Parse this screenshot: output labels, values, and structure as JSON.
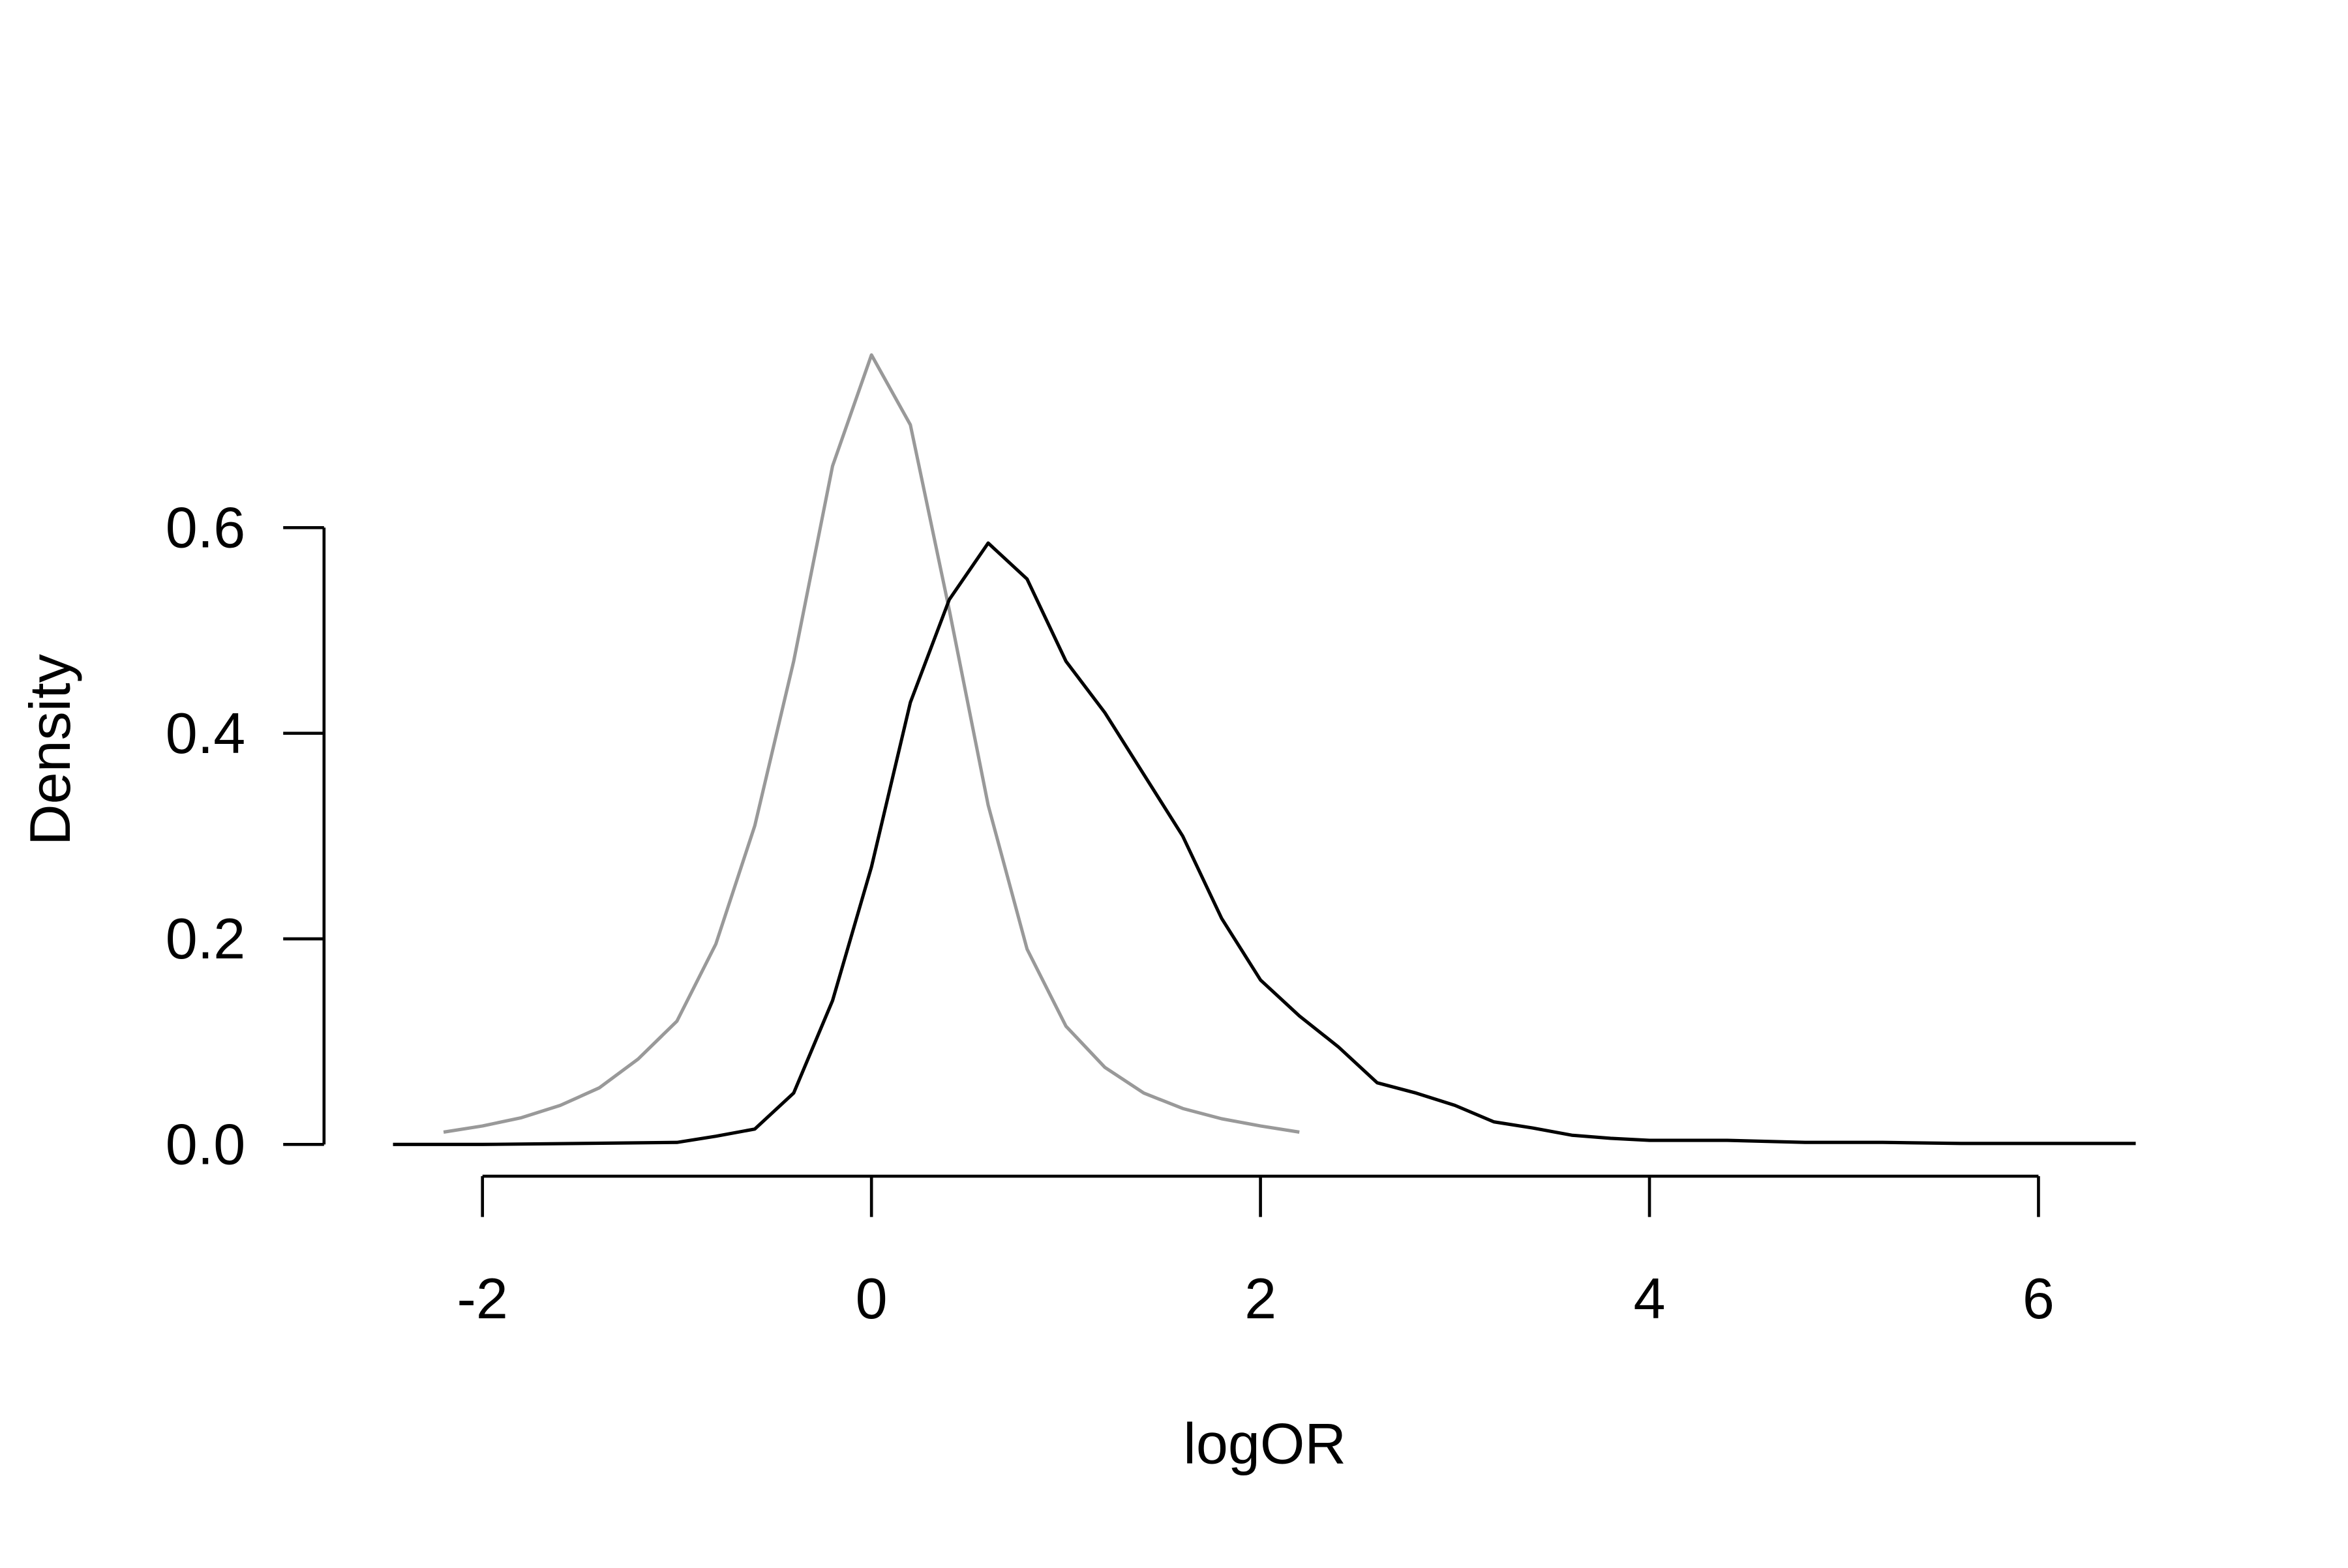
{
  "chart_data": {
    "type": "line",
    "xlabel": "logOR",
    "ylabel": "Density",
    "xlim": [
      -2.46,
      6.5
    ],
    "ylim": [
      0,
      0.77
    ],
    "xticks": [
      -2,
      0,
      2,
      4,
      6
    ],
    "yticks": [
      {
        "value": 0,
        "label": "0.0"
      },
      0.2,
      0.4,
      0.6
    ],
    "series": [
      {
        "color": "#999999",
        "x": [
          -2.2,
          -2.0,
          -1.8,
          -1.6,
          -1.4,
          -1.2,
          -1.0,
          -0.8,
          -0.6,
          -0.4,
          -0.2,
          0,
          0.2,
          0.4,
          0.6,
          0.8,
          1.0,
          1.2,
          1.4,
          1.6,
          1.8,
          2.0,
          2.2
        ],
        "values": [
          0.012,
          0.018,
          0.026,
          0.038,
          0.055,
          0.083,
          0.12,
          0.195,
          0.31,
          0.47,
          0.66,
          0.768,
          0.7,
          0.52,
          0.33,
          0.19,
          0.115,
          0.075,
          0.05,
          0.035,
          0.025,
          0.018,
          0.012
        ]
      },
      {
        "color": "#000000",
        "x": [
          -2.46,
          -2.0,
          -1.5,
          -1.0,
          -0.8,
          -0.6,
          -0.4,
          -0.2,
          0,
          0.2,
          0.4,
          0.6,
          0.8,
          1.0,
          1.2,
          1.4,
          1.6,
          1.8,
          2.0,
          2.2,
          2.4,
          2.6,
          2.8,
          3.0,
          3.2,
          3.4,
          3.6,
          3.8,
          4.0,
          4.4,
          4.8,
          5.2,
          5.6,
          6.0,
          6.5
        ],
        "values": [
          0.0,
          0.0,
          0.001,
          0.002,
          0.008,
          0.015,
          0.05,
          0.14,
          0.27,
          0.43,
          0.53,
          0.585,
          0.55,
          0.47,
          0.42,
          0.36,
          0.3,
          0.22,
          0.16,
          0.125,
          0.095,
          0.06,
          0.05,
          0.038,
          0.022,
          0.016,
          0.009,
          0.006,
          0.004,
          0.004,
          0.002,
          0.002,
          0.001,
          0.001,
          0.001
        ]
      }
    ]
  }
}
